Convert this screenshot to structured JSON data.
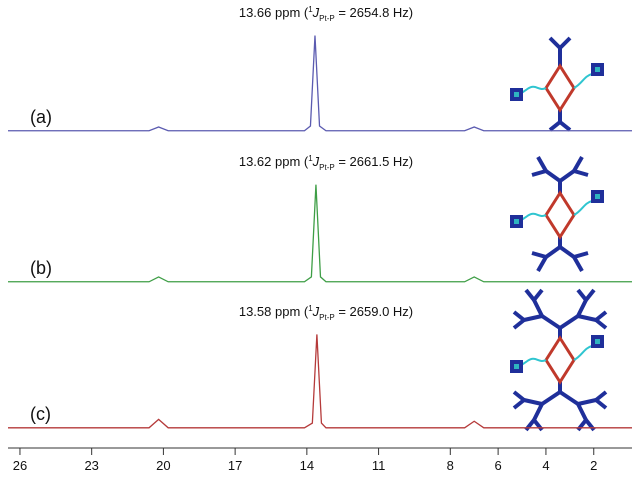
{
  "chart_data": [
    {
      "type": "line",
      "label": "(a)",
      "annotation": {
        "main": "13.66 ppm (",
        "sup": "1",
        "J": "J",
        "sub": "Pt-P",
        "rest": " = 2654.8 Hz)"
      },
      "x": [
        26.5,
        20.6,
        20.2,
        19.8,
        14.1,
        13.85,
        13.66,
        13.47,
        13.2,
        7.4,
        7.0,
        6.6,
        0.4
      ],
      "values": [
        0,
        0,
        4,
        0,
        0,
        5,
        100,
        5,
        0,
        0,
        4,
        0,
        0
      ],
      "color": "#5b5bb0",
      "xlim": [
        26.5,
        0.4
      ],
      "ylim": [
        -5,
        105
      ]
    },
    {
      "type": "line",
      "label": "(b)",
      "annotation": {
        "main": "13.62 ppm (",
        "sup": "1",
        "J": "J",
        "sub": "Pt-P",
        "rest": " = 2661.5 Hz)"
      },
      "x": [
        26.5,
        20.6,
        20.2,
        19.8,
        14.1,
        13.81,
        13.62,
        13.43,
        13.2,
        7.4,
        7.0,
        6.6,
        0.4
      ],
      "values": [
        0,
        0,
        5,
        0,
        0,
        5,
        100,
        5,
        0,
        0,
        5,
        0,
        0
      ],
      "color": "#3e9e46",
      "xlim": [
        26.5,
        0.4
      ],
      "ylim": [
        -5,
        105
      ]
    },
    {
      "type": "line",
      "label": "(c)",
      "annotation": {
        "main": "13.58 ppm (",
        "sup": "1",
        "J": "J",
        "sub": "Pt-P",
        "rest": " = 2659.0 Hz)"
      },
      "x": [
        26.5,
        20.6,
        20.2,
        19.8,
        14.1,
        13.77,
        13.58,
        13.39,
        13.2,
        7.4,
        7.0,
        6.6,
        0.4
      ],
      "values": [
        0,
        0,
        9,
        0,
        0,
        5,
        100,
        5,
        0,
        0,
        7,
        0,
        0
      ],
      "color": "#b53a3a",
      "xlim": [
        26.5,
        0.4
      ],
      "ylim": [
        -5,
        105
      ],
      "xticks": [
        26,
        23,
        20,
        17,
        14,
        11,
        8,
        6,
        4,
        2
      ]
    }
  ]
}
